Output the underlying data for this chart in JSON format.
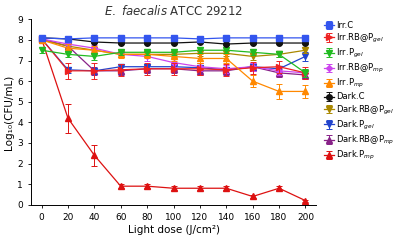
{
  "title": "E. faecalis ATCC 29212",
  "xlabel": "Light dose (J/cm²)",
  "ylabel": "Log₁₀(CFU/mL)",
  "x": [
    0,
    20,
    40,
    60,
    80,
    100,
    120,
    140,
    160,
    180,
    200
  ],
  "ylim": [
    0,
    9
  ],
  "yticks": [
    0,
    1,
    2,
    3,
    4,
    5,
    6,
    7,
    8,
    9
  ],
  "series": [
    {
      "key": "Irr.C",
      "label": "Irr.C",
      "y": [
        8.1,
        8.05,
        8.1,
        8.1,
        8.1,
        8.1,
        8.05,
        8.1,
        8.1,
        8.1,
        8.1
      ],
      "yerr": [
        0.05,
        0.05,
        0.05,
        0.05,
        0.05,
        0.05,
        0.05,
        0.05,
        0.05,
        0.05,
        0.05
      ],
      "color": "#3355ee",
      "marker": "s",
      "markersize": 4,
      "zorder": 10
    },
    {
      "key": "Irr.RB@P_gel",
      "label": "Irr.RB@P$_{gel}$",
      "y": [
        8.05,
        6.5,
        6.5,
        6.55,
        6.6,
        6.6,
        6.6,
        6.55,
        6.65,
        6.7,
        6.4
      ],
      "yerr": [
        0.1,
        0.4,
        0.4,
        0.3,
        0.3,
        0.3,
        0.3,
        0.3,
        0.3,
        0.3,
        0.3
      ],
      "color": "#ee2222",
      "marker": ">",
      "markersize": 4,
      "zorder": 6
    },
    {
      "key": "Irr.P_gel",
      "label": "Irr.P$_{gel}$",
      "y": [
        7.5,
        7.3,
        7.2,
        7.4,
        7.4,
        7.4,
        7.5,
        7.5,
        7.4,
        7.3,
        6.4
      ],
      "yerr": [
        0.15,
        0.15,
        0.15,
        0.15,
        0.15,
        0.15,
        0.15,
        0.15,
        0.15,
        0.15,
        0.2
      ],
      "color": "#22bb22",
      "marker": "v",
      "markersize": 5,
      "zorder": 8
    },
    {
      "key": "Irr.RB@P_mp",
      "label": "Irr.RB@P$_{mp}$",
      "y": [
        8.05,
        7.8,
        7.6,
        7.3,
        7.2,
        6.9,
        6.7,
        6.6,
        6.7,
        6.5,
        6.4
      ],
      "yerr": [
        0.1,
        0.15,
        0.15,
        0.15,
        0.2,
        0.2,
        0.2,
        0.2,
        0.2,
        0.2,
        0.2
      ],
      "color": "#cc44ee",
      "marker": "D",
      "markersize": 3,
      "zorder": 5
    },
    {
      "key": "Irr.P_mp",
      "label": "Irr.P$_{mp}$",
      "y": [
        8.0,
        7.6,
        7.5,
        7.3,
        7.3,
        7.2,
        7.1,
        7.1,
        6.0,
        5.5,
        5.5
      ],
      "yerr": [
        0.15,
        0.2,
        0.2,
        0.2,
        0.2,
        0.2,
        0.2,
        0.2,
        0.3,
        0.35,
        0.3
      ],
      "color": "#ff8800",
      "marker": "^",
      "markersize": 4,
      "zorder": 7
    },
    {
      "key": "Dark.C",
      "label": "Dark.C",
      "y": [
        8.1,
        8.05,
        7.9,
        7.85,
        7.85,
        7.85,
        7.9,
        7.8,
        7.85,
        7.85,
        7.85
      ],
      "yerr": [
        0.05,
        0.05,
        0.05,
        0.05,
        0.05,
        0.05,
        0.05,
        0.05,
        0.05,
        0.05,
        0.05
      ],
      "color": "#111111",
      "marker": "o",
      "markersize": 4,
      "zorder": 9
    },
    {
      "key": "Dark.RB@P_gel",
      "label": "Dark.RB@P$_{gel}$",
      "y": [
        8.0,
        7.7,
        7.5,
        7.3,
        7.3,
        7.3,
        7.35,
        7.35,
        7.2,
        7.3,
        7.5
      ],
      "yerr": [
        0.15,
        0.15,
        0.15,
        0.15,
        0.15,
        0.15,
        0.15,
        0.15,
        0.15,
        0.15,
        0.15
      ],
      "color": "#aa8800",
      "marker": "v",
      "markersize": 4,
      "zorder": 4
    },
    {
      "key": "Dark.P_gel",
      "label": "Dark.P$_{gel}$",
      "y": [
        8.05,
        6.55,
        6.5,
        6.7,
        6.7,
        6.7,
        6.65,
        6.55,
        6.7,
        6.6,
        7.2
      ],
      "yerr": [
        0.1,
        0.15,
        0.15,
        0.15,
        0.15,
        0.15,
        0.15,
        0.15,
        0.15,
        0.15,
        0.2
      ],
      "color": "#2244cc",
      "marker": "v",
      "markersize": 5,
      "zorder": 3
    },
    {
      "key": "Dark.RB@P_mp",
      "label": "Dark.RB@P$_{mp}$",
      "y": [
        8.05,
        7.7,
        6.5,
        6.5,
        6.6,
        6.6,
        6.5,
        6.5,
        6.7,
        6.4,
        6.3
      ],
      "yerr": [
        0.1,
        0.2,
        0.2,
        0.2,
        0.2,
        0.2,
        0.2,
        0.2,
        0.2,
        0.2,
        0.2
      ],
      "color": "#882288",
      "marker": "^",
      "markersize": 4,
      "zorder": 2
    },
    {
      "key": "Dark.P_mp",
      "label": "Dark.P$_{mp}$",
      "y": [
        8.05,
        4.2,
        2.4,
        0.9,
        0.9,
        0.8,
        0.8,
        0.8,
        0.4,
        0.8,
        0.2
      ],
      "yerr": [
        0.1,
        0.7,
        0.5,
        0.1,
        0.1,
        0.1,
        0.1,
        0.1,
        0.05,
        0.1,
        0.05
      ],
      "color": "#dd1111",
      "marker": "^",
      "markersize": 4,
      "zorder": 1
    }
  ],
  "background_color": "#ffffff",
  "figsize": [
    4.0,
    2.39
  ],
  "dpi": 100
}
